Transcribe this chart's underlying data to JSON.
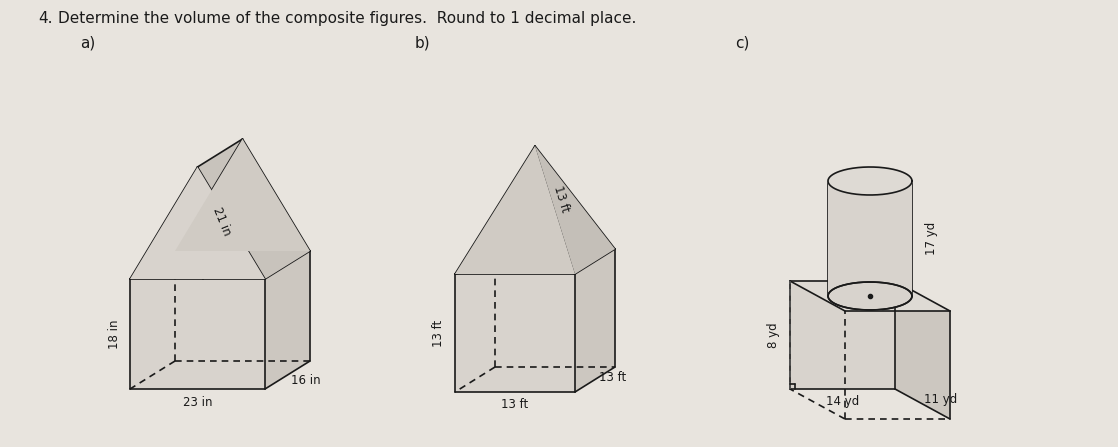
{
  "title": "4.  Determine the volume of the composite figures.  Round to 1 decimal place.",
  "subtitle_a": "a)",
  "subtitle_b": "b)",
  "subtitle_c": "c)",
  "bg_color": "#e8e4de",
  "line_color": "#1a1a1a",
  "face_color": "#e0dbd4"
}
